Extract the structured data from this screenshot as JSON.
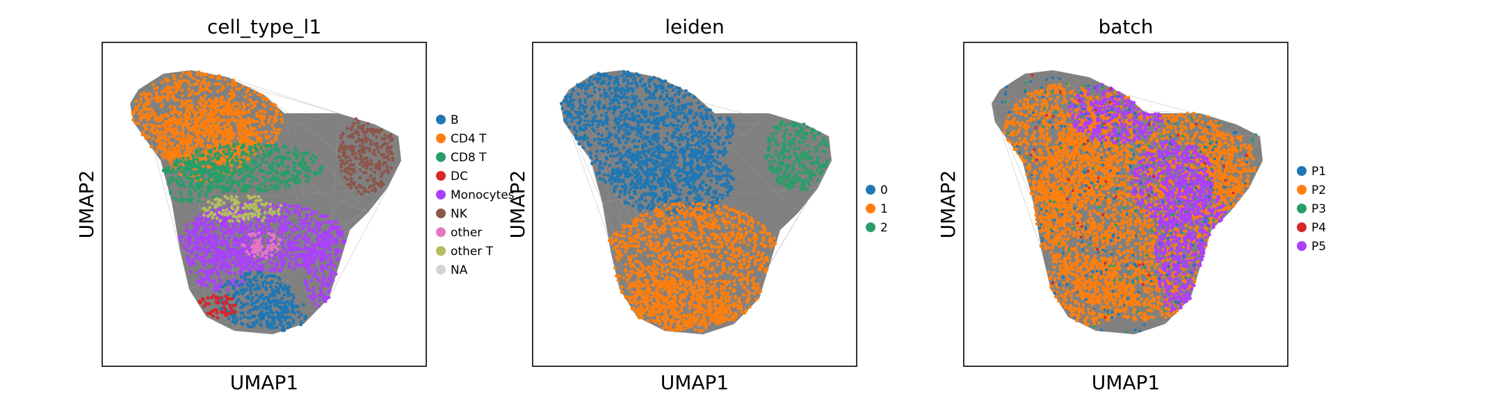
{
  "chart_data": [
    {
      "type": "scatter",
      "title": "cell_type_l1",
      "xlabel": "UMAP1",
      "ylabel": "UMAP2",
      "legend_position": "right",
      "grid": false,
      "background_edges_color": "#808080",
      "legend": [
        {
          "label": "B",
          "color": "#1f77b4"
        },
        {
          "label": "CD4 T",
          "color": "#ff7f0e"
        },
        {
          "label": "CD8 T",
          "color": "#279e68"
        },
        {
          "label": "DC",
          "color": "#d62728"
        },
        {
          "label": "Monocytes",
          "color": "#aa40fc"
        },
        {
          "label": "NK",
          "color": "#8c564b"
        },
        {
          "label": "other",
          "color": "#e377c2"
        },
        {
          "label": "other T",
          "color": "#b5bd61"
        },
        {
          "label": "NA",
          "color": "#d3d3d3"
        }
      ]
    },
    {
      "type": "scatter",
      "title": "leiden",
      "xlabel": "UMAP1",
      "ylabel": "UMAP2",
      "legend_position": "right",
      "grid": false,
      "background_edges_color": "#808080",
      "legend": [
        {
          "label": "0",
          "color": "#1f77b4"
        },
        {
          "label": "1",
          "color": "#ff7f0e"
        },
        {
          "label": "2",
          "color": "#279e68"
        }
      ]
    },
    {
      "type": "scatter",
      "title": "batch",
      "xlabel": "UMAP1",
      "ylabel": "UMAP2",
      "legend_position": "right",
      "grid": false,
      "background_edges_color": "#808080",
      "legend": [
        {
          "label": "P1",
          "color": "#1f77b4"
        },
        {
          "label": "P2",
          "color": "#ff7f0e"
        },
        {
          "label": "P3",
          "color": "#279e68"
        },
        {
          "label": "P4",
          "color": "#d62728"
        },
        {
          "label": "P5",
          "color": "#aa40fc"
        }
      ]
    }
  ]
}
